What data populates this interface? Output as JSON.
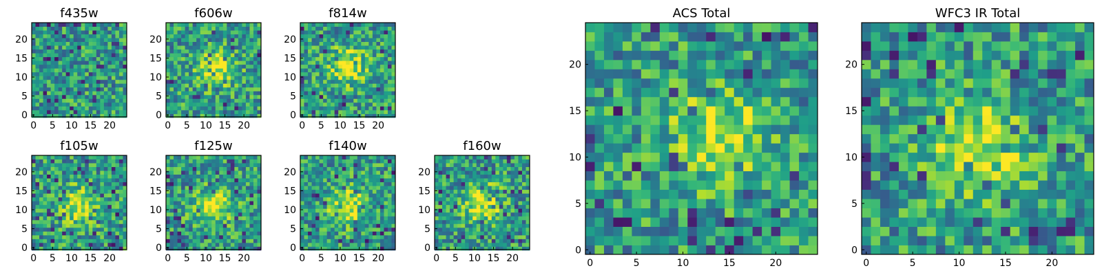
{
  "chart_data": [
    {
      "type": "heatmap",
      "title": "f435w",
      "xticks": [
        "0",
        "5",
        "10",
        "15",
        "20"
      ],
      "yticks": [
        "0",
        "5",
        "10",
        "15",
        "20"
      ],
      "grid_size": [
        25,
        25
      ],
      "colormap": "viridis",
      "range": [
        0,
        24
      ],
      "grid": false,
      "peak": null
    },
    {
      "type": "heatmap",
      "title": "f606w",
      "xticks": [
        "0",
        "5",
        "10",
        "15",
        "20"
      ],
      "yticks": [
        "0",
        "5",
        "10",
        "15",
        "20"
      ],
      "grid_size": [
        25,
        25
      ],
      "colormap": "viridis",
      "range": [
        0,
        24
      ],
      "grid": false,
      "peak": [
        13,
        12
      ]
    },
    {
      "type": "heatmap",
      "title": "f814w",
      "xticks": [
        "0",
        "5",
        "10",
        "15",
        "20"
      ],
      "yticks": [
        "0",
        "5",
        "10",
        "15",
        "20"
      ],
      "grid_size": [
        25,
        25
      ],
      "colormap": "viridis",
      "range": [
        0,
        24
      ],
      "grid": false,
      "peak": [
        12,
        13
      ]
    },
    {
      "type": "heatmap",
      "title": "f105w",
      "xticks": [
        "0",
        "5",
        "10",
        "15",
        "20"
      ],
      "yticks": [
        "0",
        "5",
        "10",
        "15",
        "20"
      ],
      "grid_size": [
        25,
        25
      ],
      "colormap": "viridis",
      "range": [
        0,
        24
      ],
      "grid": false,
      "peak": [
        12,
        11
      ]
    },
    {
      "type": "heatmap",
      "title": "f125w",
      "xticks": [
        "0",
        "5",
        "10",
        "15",
        "20"
      ],
      "yticks": [
        "0",
        "5",
        "10",
        "15",
        "20"
      ],
      "grid_size": [
        25,
        25
      ],
      "colormap": "viridis",
      "range": [
        0,
        24
      ],
      "grid": false,
      "peak": [
        12,
        11
      ]
    },
    {
      "type": "heatmap",
      "title": "f140w",
      "xticks": [
        "0",
        "5",
        "10",
        "15",
        "20"
      ],
      "yticks": [
        "0",
        "5",
        "10",
        "15",
        "20"
      ],
      "grid_size": [
        25,
        25
      ],
      "colormap": "viridis",
      "range": [
        0,
        24
      ],
      "grid": false,
      "peak": [
        12,
        11
      ]
    },
    {
      "type": "heatmap",
      "title": "f160w",
      "xticks": [
        "0",
        "5",
        "10",
        "15",
        "20"
      ],
      "yticks": [
        "0",
        "5",
        "10",
        "15",
        "20"
      ],
      "grid_size": [
        25,
        25
      ],
      "colormap": "viridis",
      "range": [
        0,
        24
      ],
      "grid": false,
      "peak": [
        12,
        12
      ]
    },
    {
      "type": "heatmap",
      "title": "ACS Total",
      "xticks": [
        "0",
        "5",
        "10",
        "15",
        "20"
      ],
      "yticks": [
        "0",
        "5",
        "10",
        "15",
        "20"
      ],
      "grid_size": [
        25,
        25
      ],
      "colormap": "viridis",
      "range": [
        0,
        24
      ],
      "grid": false,
      "peak": [
        14,
        12
      ]
    },
    {
      "type": "heatmap",
      "title": "WFC3 IR Total",
      "xticks": [
        "0",
        "5",
        "10",
        "15",
        "20"
      ],
      "yticks": [
        "0",
        "5",
        "10",
        "15",
        "20"
      ],
      "grid_size": [
        25,
        25
      ],
      "colormap": "viridis",
      "range": [
        0,
        24
      ],
      "grid": false,
      "peak": [
        12,
        11
      ]
    }
  ]
}
